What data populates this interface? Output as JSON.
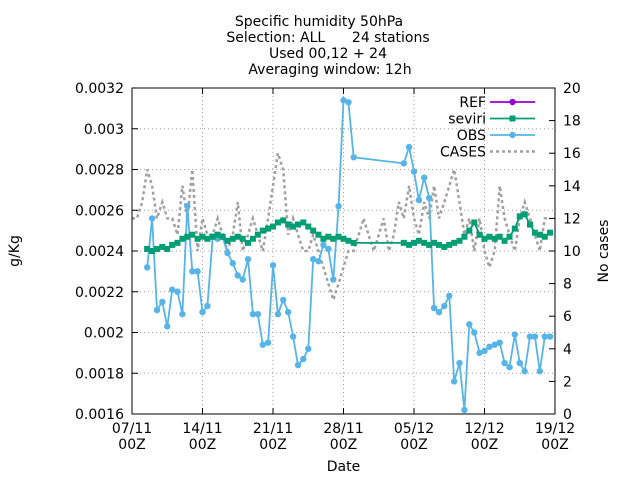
{
  "chart_data": {
    "type": "line",
    "title_lines": [
      "Specific humidity 50hPa",
      "Selection: ALL      24 stations",
      "Used 00,12 + 24",
      "Averaging window: 12h"
    ],
    "xlabel": "Date",
    "ylabel": "g/Kg",
    "y2label": "No cases",
    "xlim": [
      0,
      12
    ],
    "ylim": [
      0.0016,
      0.0032
    ],
    "y2lim": [
      0,
      20
    ],
    "x_ticks": [
      {
        "x": 0,
        "line1": "07/11",
        "line2": "00Z"
      },
      {
        "x": 2,
        "line1": "14/11",
        "line2": "00Z"
      },
      {
        "x": 4,
        "line1": "21/11",
        "line2": "00Z"
      },
      {
        "x": 6,
        "line1": "28/11",
        "line2": "00Z"
      },
      {
        "x": 8,
        "line1": "05/12",
        "line2": "00Z"
      },
      {
        "x": 10,
        "line1": "12/12",
        "line2": "00Z"
      },
      {
        "x": 12,
        "line1": "19/12",
        "line2": "00Z"
      }
    ],
    "y_ticks": [
      "0.0016",
      "0.0018",
      "0.002",
      "0.0022",
      "0.0024",
      "0.0026",
      "0.0028",
      "0.003",
      "0.0032"
    ],
    "y2_ticks": [
      "0",
      "2",
      "4",
      "6",
      "8",
      "10",
      "12",
      "14",
      "16",
      "18",
      "20"
    ],
    "grid": true,
    "legend_position": "top-right",
    "series": [
      {
        "name": "REF",
        "color": "#9400d3",
        "axis": "y",
        "style": "line-points",
        "marker": "circle",
        "x": [],
        "y": []
      },
      {
        "name": "seviri",
        "color": "#009e73",
        "axis": "y",
        "style": "line-points",
        "marker": "square",
        "x": [
          0.43,
          0.57,
          0.71,
          0.86,
          1.0,
          1.14,
          1.29,
          1.43,
          1.57,
          1.71,
          1.86,
          2.0,
          2.14,
          2.29,
          2.43,
          2.57,
          2.71,
          2.86,
          3.0,
          3.14,
          3.29,
          3.43,
          3.57,
          3.71,
          3.86,
          4.0,
          4.14,
          4.29,
          4.43,
          4.57,
          4.71,
          4.86,
          5.0,
          5.14,
          5.29,
          5.43,
          5.57,
          5.71,
          5.86,
          6.0,
          6.14,
          6.29,
          7.71,
          7.86,
          8.0,
          8.14,
          8.29,
          8.43,
          8.57,
          8.71,
          8.86,
          9.0,
          9.14,
          9.29,
          9.43,
          9.57,
          9.71,
          9.86,
          10.0,
          10.14,
          10.29,
          10.43,
          10.57,
          10.71,
          10.86,
          11.0,
          11.14,
          11.29,
          11.43,
          11.57,
          11.71,
          11.86
        ],
        "y": [
          0.00241,
          0.0024,
          0.00241,
          0.00242,
          0.00241,
          0.00243,
          0.00244,
          0.00246,
          0.00247,
          0.00248,
          0.00246,
          0.00247,
          0.00246,
          0.00247,
          0.00248,
          0.00247,
          0.00245,
          0.00246,
          0.00247,
          0.00246,
          0.00244,
          0.00246,
          0.00248,
          0.0025,
          0.00251,
          0.00252,
          0.00254,
          0.00255,
          0.00253,
          0.00252,
          0.00253,
          0.00254,
          0.00252,
          0.0025,
          0.00248,
          0.00246,
          0.00247,
          0.00246,
          0.00247,
          0.00246,
          0.00245,
          0.00244,
          0.00244,
          0.00243,
          0.00244,
          0.00245,
          0.00244,
          0.00243,
          0.00244,
          0.00243,
          0.00242,
          0.00243,
          0.00244,
          0.00245,
          0.00247,
          0.0025,
          0.00254,
          0.00248,
          0.00246,
          0.00247,
          0.00246,
          0.00247,
          0.00245,
          0.00247,
          0.00251,
          0.00257,
          0.00258,
          0.00253,
          0.00249,
          0.00248,
          0.00247,
          0.00249
        ]
      },
      {
        "name": "OBS",
        "color": "#56b4e9",
        "axis": "y",
        "style": "line-points",
        "marker": "circle",
        "x": [
          0.43,
          0.57,
          0.71,
          0.86,
          1.0,
          1.14,
          1.29,
          1.43,
          1.57,
          1.71,
          1.86,
          2.0,
          2.14,
          2.29,
          2.43,
          2.57,
          2.71,
          2.86,
          3.0,
          3.14,
          3.29,
          3.43,
          3.57,
          3.71,
          3.86,
          4.0,
          4.14,
          4.29,
          4.43,
          4.57,
          4.71,
          4.86,
          5.0,
          5.14,
          5.29,
          5.43,
          5.57,
          5.71,
          5.86,
          6.0,
          6.14,
          6.29,
          7.71,
          7.86,
          8.0,
          8.14,
          8.29,
          8.43,
          8.57,
          8.71,
          8.86,
          9.0,
          9.14,
          9.29,
          9.43,
          9.57,
          9.71,
          9.86,
          10.0,
          10.14,
          10.29,
          10.43,
          10.57,
          10.71,
          10.86,
          11.0,
          11.14,
          11.29,
          11.43,
          11.57,
          11.71,
          11.86
        ],
        "y": [
          0.00232,
          0.00256,
          0.00211,
          0.00215,
          0.00203,
          0.00221,
          0.0022,
          0.00209,
          0.00262,
          0.0023,
          0.0023,
          0.0021,
          0.00213,
          0.00247,
          0.00246,
          0.00247,
          0.00239,
          0.00234,
          0.00228,
          0.00226,
          0.00236,
          0.00209,
          0.00209,
          0.00194,
          0.00195,
          0.00233,
          0.00209,
          0.00216,
          0.0021,
          0.00198,
          0.00184,
          0.00187,
          0.00192,
          0.00236,
          0.00235,
          0.00243,
          0.00241,
          0.00226,
          0.00262,
          0.00314,
          0.00313,
          0.00286,
          0.00283,
          0.00291,
          0.00279,
          0.00265,
          0.00276,
          0.00266,
          0.00212,
          0.0021,
          0.00213,
          0.00218,
          0.00176,
          0.00185,
          0.00162,
          0.00204,
          0.002,
          0.0019,
          0.00191,
          0.00193,
          0.00194,
          0.00195,
          0.00185,
          0.00183,
          0.00199,
          0.00185,
          0.00181,
          0.00198,
          0.00198,
          0.00181,
          0.00198,
          0.00198
        ]
      },
      {
        "name": "CASES",
        "color": "#a0a0a0",
        "axis": "y2",
        "style": "dashed",
        "x": [
          0.0,
          0.14,
          0.29,
          0.43,
          0.57,
          0.71,
          0.86,
          1.0,
          1.14,
          1.29,
          1.43,
          1.57,
          1.71,
          1.86,
          2.0,
          2.14,
          2.29,
          2.43,
          2.57,
          2.71,
          2.86,
          3.0,
          3.14,
          3.29,
          3.43,
          3.57,
          3.71,
          3.86,
          4.0,
          4.14,
          4.29,
          4.43,
          4.57,
          4.71,
          4.86,
          5.0,
          5.14,
          5.29,
          5.43,
          5.57,
          5.71,
          5.86,
          6.0,
          6.14,
          6.29,
          6.43,
          6.57,
          6.71,
          6.86,
          7.0,
          7.14,
          7.29,
          7.43,
          7.57,
          7.71,
          7.86,
          8.0,
          8.14,
          8.29,
          8.43,
          8.57,
          8.71,
          8.86,
          9.0,
          9.14,
          9.29,
          9.43,
          9.57,
          9.71,
          9.86,
          10.0,
          10.14,
          10.29,
          10.43,
          10.57,
          10.71,
          10.86,
          11.0,
          11.14,
          11.29,
          11.43,
          11.57,
          11.71,
          11.86
        ],
        "y": [
          12,
          12,
          13,
          15,
          14,
          12,
          13,
          12,
          12,
          11,
          14,
          12,
          15,
          10,
          12,
          11,
          11,
          12,
          11,
          10,
          11,
          13,
          10,
          11,
          12,
          11,
          10,
          12,
          14,
          16,
          15,
          11,
          12,
          11,
          10,
          10,
          11,
          10,
          9,
          8,
          7,
          8,
          9,
          10,
          10,
          11,
          12,
          11,
          10,
          11,
          12,
          10,
          11,
          13,
          12,
          14,
          12,
          11,
          13,
          12,
          14,
          12,
          13,
          14,
          15,
          13,
          11,
          12,
          10,
          12,
          10,
          9,
          10,
          14,
          12,
          11,
          10,
          12,
          13,
          12,
          11,
          10,
          12,
          12
        ]
      }
    ]
  }
}
